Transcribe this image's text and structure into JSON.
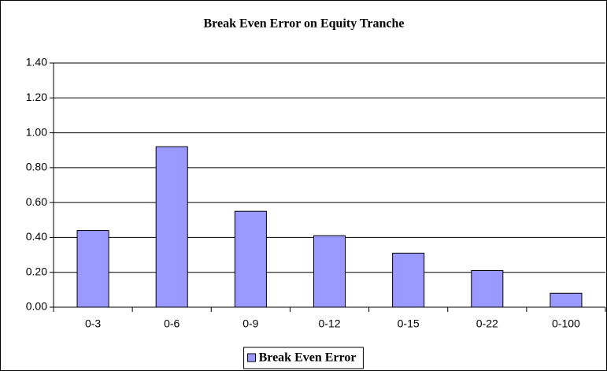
{
  "chart_data": {
    "type": "bar",
    "title": "Break Even Error on Equity Tranche",
    "categories": [
      "0-3",
      "0-6",
      "0-9",
      "0-12",
      "0-15",
      "0-22",
      "0-100"
    ],
    "series": [
      {
        "name": "Break Even Error",
        "color": "#9999ff",
        "values": [
          0.44,
          0.92,
          0.55,
          0.41,
          0.31,
          0.21,
          0.08
        ]
      }
    ],
    "ylim": [
      0,
      1.4
    ],
    "yticks": [
      {
        "value": 0,
        "label": "0.00"
      },
      {
        "value": 0.2,
        "label": "0.20"
      },
      {
        "value": 0.4,
        "label": "0.40"
      },
      {
        "value": 0.6,
        "label": "0.60"
      },
      {
        "value": 0.8,
        "label": "0.80"
      },
      {
        "value": 1.0,
        "label": "1.00"
      },
      {
        "value": 1.2,
        "label": "1.20"
      },
      {
        "value": 1.4,
        "label": "1.40"
      }
    ],
    "grid": true,
    "legend": "bottom"
  }
}
